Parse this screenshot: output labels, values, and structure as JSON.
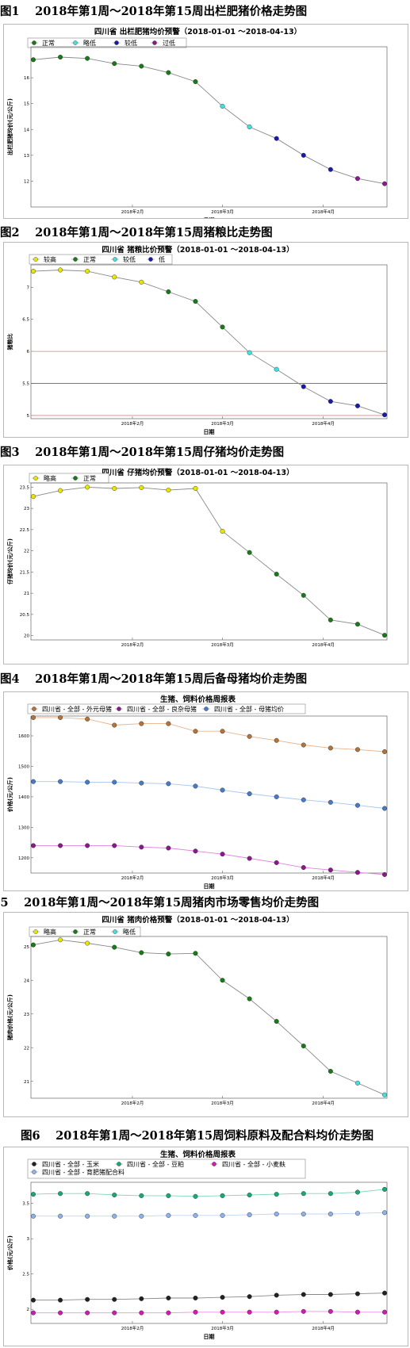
{
  "figures": [
    {
      "heading": "图1　 2018年第1周～2018年第15周出栏肥猪价格走势图",
      "chart_data": {
        "type": "line",
        "title": "四川省 出栏肥猪均价预警（2018-01-01 ～2018-04-13）",
        "xlabel": "日期",
        "ylabel": "出栏肥猪均价(元/公斤)",
        "x_tick_labels": [
          "2018年2月",
          "2018年3月",
          "2018年4月"
        ],
        "ylim": [
          11.0,
          17.2
        ],
        "y_ticks": [
          12,
          13,
          14,
          15,
          16
        ],
        "legend": [
          {
            "name": "正常",
            "color": "#1a7a1a"
          },
          {
            "name": "略低",
            "color": "#40e0e0"
          },
          {
            "name": "较低",
            "color": "#1a1aa8"
          },
          {
            "name": "过低",
            "color": "#8b1a8b"
          }
        ],
        "series": [
          {
            "values": [
              16.7,
              16.8,
              16.75,
              16.55,
              16.45,
              16.2,
              15.85,
              14.9,
              14.1,
              13.65,
              13.0,
              12.45,
              12.1,
              11.9
            ],
            "states": [
              "正常",
              "正常",
              "正常",
              "正常",
              "正常",
              "正常",
              "正常",
              "略低",
              "略低",
              "较低",
              "较低",
              "较低",
              "过低",
              "过低"
            ],
            "line_color": "#888888"
          }
        ]
      }
    },
    {
      "heading": "图2　 2018年第1周～2018年第15周猪粮比走势图",
      "chart_data": {
        "type": "line",
        "title": "四川省 猪粮比价预警（2018-01-01 ～2018-04-13）",
        "xlabel": "日期",
        "ylabel": "猪粮比",
        "x_tick_labels": [
          "2018年2月",
          "2018年3月",
          "2018年4月"
        ],
        "ylim": [
          4.95,
          7.35
        ],
        "y_ticks": [
          5.0,
          5.5,
          6.0,
          6.5,
          7.0
        ],
        "hlines": [
          {
            "y": 6.0,
            "color": "#e08080"
          },
          {
            "y": 5.5,
            "color": "#666666"
          },
          {
            "y": 5.0,
            "color": "#e08080"
          }
        ],
        "legend": [
          {
            "name": "较高",
            "color": "#e6e600"
          },
          {
            "name": "正常",
            "color": "#1a7a1a"
          },
          {
            "name": "较低",
            "color": "#40e0e0"
          },
          {
            "name": "低",
            "color": "#1a1aa8"
          }
        ],
        "series": [
          {
            "values": [
              7.25,
              7.27,
              7.25,
              7.16,
              7.08,
              6.93,
              6.78,
              6.38,
              5.98,
              5.72,
              5.45,
              5.22,
              5.15,
              5.01
            ],
            "states": [
              "较高",
              "较高",
              "较高",
              "较高",
              "较高",
              "正常",
              "正常",
              "正常",
              "较低",
              "较低",
              "低",
              "低",
              "低",
              "低"
            ],
            "line_color": "#888888"
          }
        ]
      }
    },
    {
      "heading": "图3　 2018年第1周～2018年第15周仔猪均价走势图",
      "chart_data": {
        "type": "line",
        "title": "四川省 仔猪均价预警（2018-01-01 ～2018-04-13）",
        "xlabel": "",
        "ylabel": "仔猪均价(元/公斤)",
        "x_tick_labels": [
          "2018年2月",
          "2018年3月",
          "2018年4月"
        ],
        "ylim": [
          19.9,
          23.6
        ],
        "y_ticks": [
          20.0,
          20.5,
          21.0,
          21.5,
          22.0,
          22.5,
          23.0,
          23.5
        ],
        "legend": [
          {
            "name": "略高",
            "color": "#e6e600"
          },
          {
            "name": "正常",
            "color": "#1a7a1a"
          }
        ],
        "series": [
          {
            "values": [
              23.28,
              23.42,
              23.5,
              23.47,
              23.49,
              23.43,
              23.47,
              22.46,
              21.96,
              21.45,
              20.95,
              20.37,
              20.27,
              20.01
            ],
            "states": [
              "略高",
              "略高",
              "略高",
              "略高",
              "略高",
              "略高",
              "略高",
              "略高",
              "正常",
              "正常",
              "正常",
              "正常",
              "正常",
              "正常"
            ],
            "line_color": "#888888"
          }
        ]
      }
    },
    {
      "heading": "图4　 2018年第1周～2018年第15周后备母猪均价走势图",
      "chart_data": {
        "type": "line",
        "title": "生猪、饲料价格周报表",
        "xlabel": "日期",
        "ylabel": "价格(元/公斤)",
        "x_tick_labels": [
          "2018年2月",
          "2018年3月",
          "2018年4月"
        ],
        "ylim": [
          1150,
          1665
        ],
        "y_ticks": [
          1200,
          1300,
          1400,
          1500,
          1600
        ],
        "series": [
          {
            "name": "四川省 - 全部 - 外元母猪",
            "color": "#b0743c",
            "line_color": "#e8b48c",
            "values": [
              1660,
              1660,
              1655,
              1635,
              1640,
              1640,
              1615,
              1615,
              1598,
              1585,
              1570,
              1560,
              1555,
              1548
            ]
          },
          {
            "name": "四川省 - 全部 - 良杂母猪",
            "color": "#8a1a8a",
            "line_color": "#e080e0",
            "values": [
              1240,
              1240,
              1240,
              1240,
              1235,
              1232,
              1222,
              1212,
              1198,
              1184,
              1168,
              1160,
              1152,
              1145
            ]
          },
          {
            "name": "四川省 - 全部 - 母猪均价",
            "color": "#4a7ac4",
            "line_color": "#a8c4f0",
            "values": [
              1450,
              1450,
              1448,
              1448,
              1445,
              1443,
              1435,
              1422,
              1410,
              1400,
              1390,
              1382,
              1372,
              1362
            ]
          }
        ]
      }
    },
    {
      "heading": "图5　 2018年第1周～2018年第15周猪肉市场零售均价走势图",
      "chart_data": {
        "type": "line",
        "title": "四川省 猪肉价格预警（2018-01-01 ～2018-04-13）",
        "xlabel": "",
        "ylabel": "猪肉价格(元/公斤)",
        "x_tick_labels": [
          "2018年2月",
          "2018年3月",
          "2018年4月"
        ],
        "ylim": [
          20.5,
          25.3
        ],
        "y_ticks": [
          21,
          22,
          23,
          24,
          25
        ],
        "legend": [
          {
            "name": "略高",
            "color": "#e6e600"
          },
          {
            "name": "正常",
            "color": "#1a7a1a"
          },
          {
            "name": "略低",
            "color": "#40e0e0"
          }
        ],
        "series": [
          {
            "values": [
              25.05,
              25.2,
              25.1,
              24.98,
              24.82,
              24.78,
              24.8,
              24.0,
              23.45,
              22.78,
              22.05,
              21.3,
              20.95,
              20.6
            ],
            "states": [
              "正常",
              "略高",
              "略高",
              "正常",
              "正常",
              "正常",
              "正常",
              "正常",
              "正常",
              "正常",
              "正常",
              "正常",
              "略低",
              "略低"
            ],
            "line_color": "#888888"
          }
        ]
      }
    },
    {
      "heading": "图6　 2018年第1周～2018年第15周饲料原料及配合料均价走势图",
      "chart_data": {
        "type": "line",
        "title": "生猪、饲料价格周报表",
        "xlabel": "日期",
        "ylabel": "价格(元/公斤)",
        "x_tick_labels": [
          "2018年2月",
          "2018年3月",
          "2018年4月"
        ],
        "ylim": [
          1.8,
          3.8
        ],
        "y_ticks": [
          2.0,
          2.5,
          3.0,
          3.5
        ],
        "series": [
          {
            "name": "四川省 - 全部 - 玉米",
            "color": "#222222",
            "line_color": "#888888",
            "values": [
              2.13,
              2.13,
              2.14,
              2.14,
              2.15,
              2.16,
              2.16,
              2.17,
              2.18,
              2.2,
              2.21,
              2.21,
              2.22,
              2.23
            ]
          },
          {
            "name": "四川省 - 全部 - 豆粕",
            "color": "#1aa87a",
            "line_color": "#80d8b8",
            "values": [
              3.63,
              3.64,
              3.64,
              3.62,
              3.61,
              3.61,
              3.6,
              3.61,
              3.62,
              3.63,
              3.64,
              3.64,
              3.66,
              3.7
            ]
          },
          {
            "name": "四川省 - 全部 - 小麦麸",
            "color": "#d01ab0",
            "line_color": "#f090e0",
            "values": [
              1.95,
              1.95,
              1.95,
              1.95,
              1.95,
              1.95,
              1.96,
              1.96,
              1.96,
              1.96,
              1.97,
              1.97,
              1.96,
              1.96
            ]
          },
          {
            "name": "四川省 - 全部 - 育肥猪配合料",
            "color": "#90b0e8",
            "line_color": "#c0d4f4",
            "values": [
              3.32,
              3.32,
              3.32,
              3.32,
              3.32,
              3.33,
              3.33,
              3.33,
              3.34,
              3.35,
              3.35,
              3.35,
              3.36,
              3.37
            ]
          }
        ]
      }
    }
  ]
}
